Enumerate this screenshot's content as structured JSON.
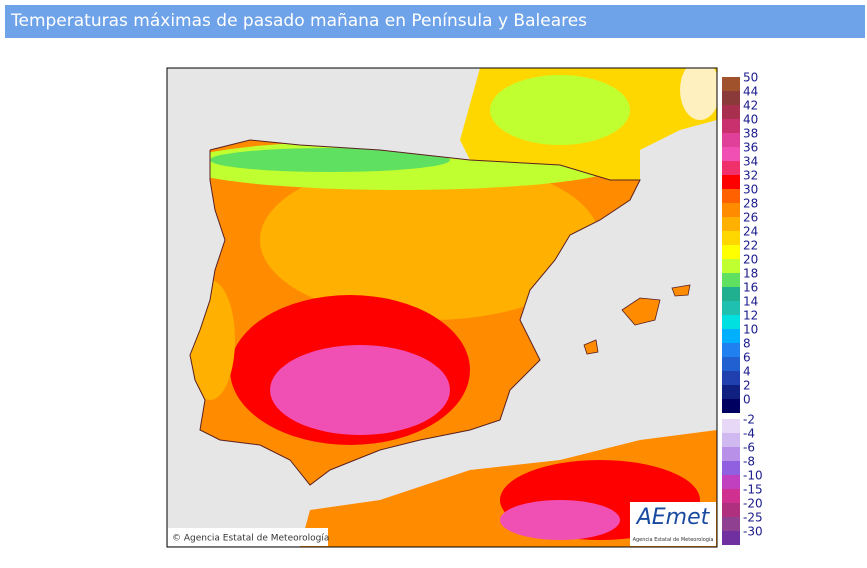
{
  "header": {
    "title": "Temperaturas máximas de pasado mañana en Península y Baleares"
  },
  "map": {
    "copyright": "© Agencia Estatal de Meteorología",
    "logo": "AEmet",
    "logo_subtitle": "Agencia Estatal de Meteorología"
  },
  "legend": {
    "items": [
      {
        "label": 50,
        "color": "#a0522d"
      },
      {
        "label": 44,
        "color": "#8b3a3a"
      },
      {
        "label": 42,
        "color": "#a8304e"
      },
      {
        "label": 40,
        "color": "#c8306e"
      },
      {
        "label": 38,
        "color": "#e0409a"
      },
      {
        "label": 36,
        "color": "#f050b4"
      },
      {
        "label": 34,
        "color": "#f0306a"
      },
      {
        "label": 32,
        "color": "#ff0000"
      },
      {
        "label": 30,
        "color": "#ff6000"
      },
      {
        "label": 28,
        "color": "#ff8c00"
      },
      {
        "label": 26,
        "color": "#ffb000"
      },
      {
        "label": 24,
        "color": "#ffd700"
      },
      {
        "label": 22,
        "color": "#ffff00"
      },
      {
        "label": 20,
        "color": "#c0ff30"
      },
      {
        "label": 18,
        "color": "#60e060"
      },
      {
        "label": 16,
        "color": "#20b090"
      },
      {
        "label": 14,
        "color": "#20c0b0"
      },
      {
        "label": 12,
        "color": "#00e0e0"
      },
      {
        "label": 10,
        "color": "#00b0ff"
      },
      {
        "label": 8,
        "color": "#2080f0"
      },
      {
        "label": 6,
        "color": "#2060d0"
      },
      {
        "label": 4,
        "color": "#2040b0"
      },
      {
        "label": 2,
        "color": "#102080"
      },
      {
        "label": 0,
        "color": "#000060"
      },
      {
        "label": -2,
        "color": "#e8d8f8"
      },
      {
        "label": -4,
        "color": "#d0b8f0"
      },
      {
        "label": -6,
        "color": "#b890e8"
      },
      {
        "label": -8,
        "color": "#9060e0"
      },
      {
        "label": -10,
        "color": "#c040c0"
      },
      {
        "label": -15,
        "color": "#d03090"
      },
      {
        "label": -20,
        "color": "#b03080"
      },
      {
        "label": -25,
        "color": "#904090"
      },
      {
        "label": -30,
        "color": "#7030a0"
      }
    ]
  }
}
